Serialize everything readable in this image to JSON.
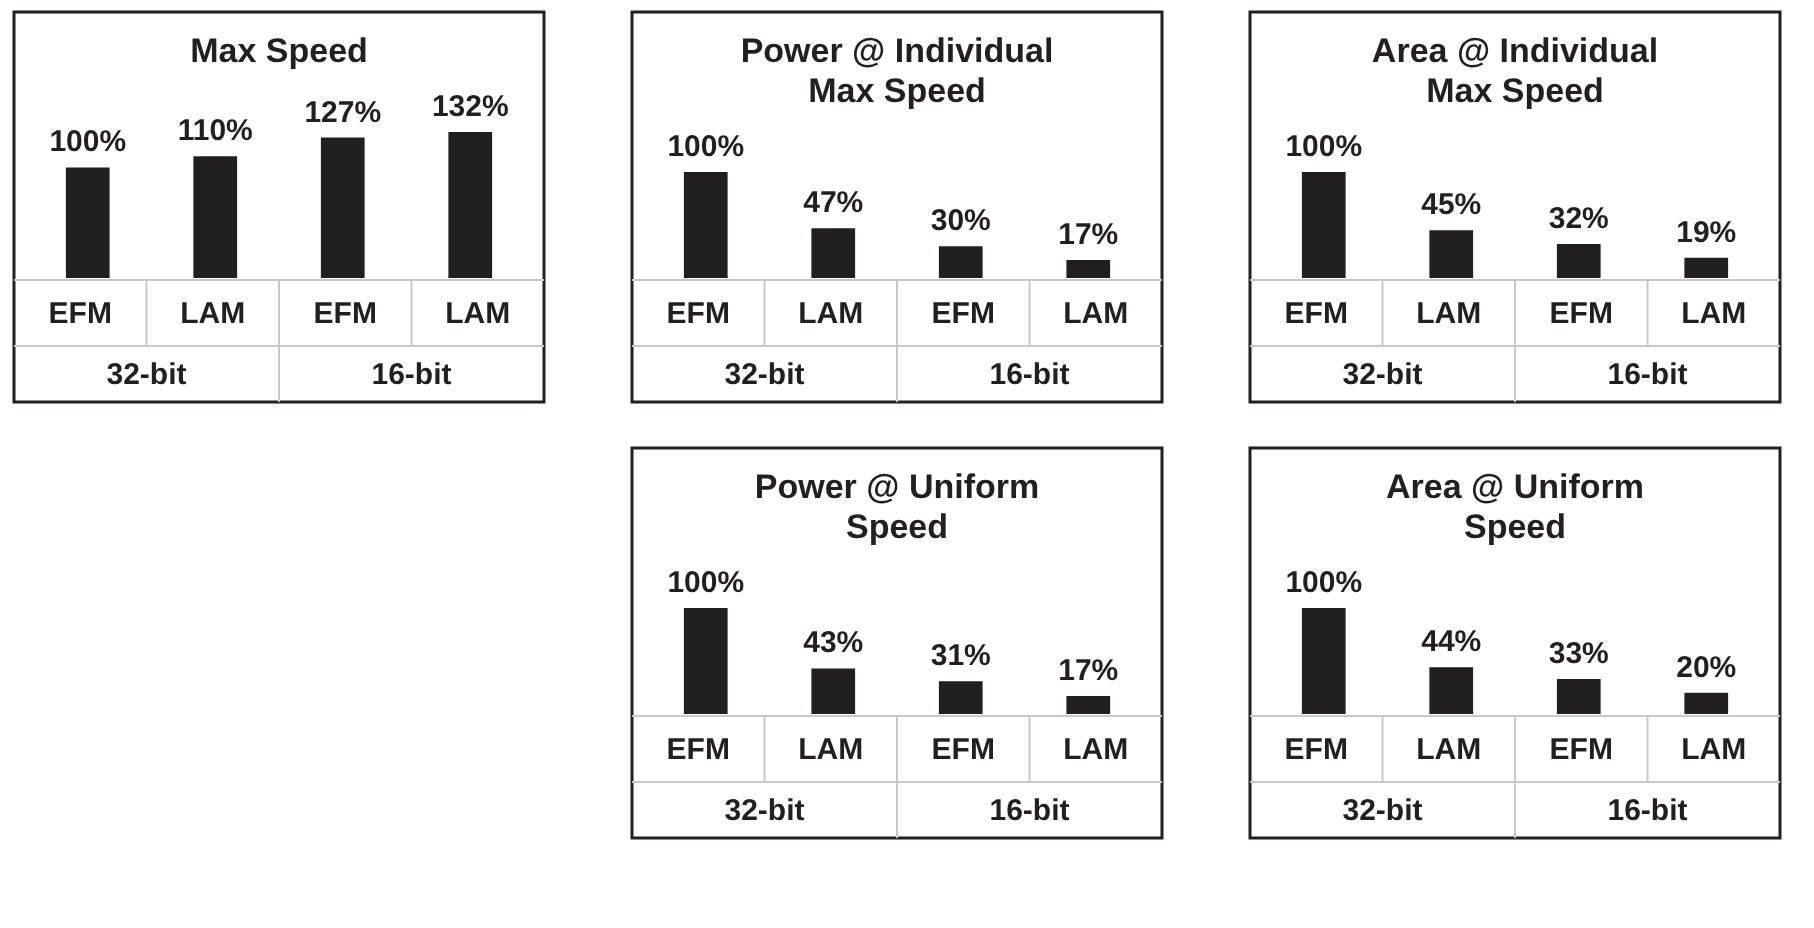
{
  "chart_data": [
    {
      "type": "bar",
      "title": "Max Speed",
      "categories": [
        "EFM",
        "LAM",
        "EFM",
        "LAM"
      ],
      "values": [
        100,
        110,
        127,
        132
      ],
      "value_labels": [
        "100%",
        "110%",
        "127%",
        "132%"
      ],
      "color": "#231f20",
      "annotations": [
        "32-bit",
        "16-bit"
      ]
    },
    {
      "type": "bar",
      "title": "Power @ Individual\nMax Speed",
      "categories": [
        "EFM",
        "LAM",
        "EFM",
        "LAM"
      ],
      "values": [
        100,
        47,
        30,
        17
      ],
      "value_labels": [
        "100%",
        "47%",
        "30%",
        "17%"
      ],
      "color": "#231f20",
      "annotations": [
        "32-bit",
        "16-bit"
      ]
    },
    {
      "type": "bar",
      "title": "Area @ Individual\nMax Speed",
      "categories": [
        "EFM",
        "LAM",
        "EFM",
        "LAM"
      ],
      "values": [
        100,
        45,
        32,
        19
      ],
      "value_labels": [
        "100%",
        "45%",
        "32%",
        "19%"
      ],
      "color": "#231f20",
      "annotations": [
        "32-bit",
        "16-bit"
      ]
    },
    {
      "type": "bar",
      "title": "Power @ Uniform\nSpeed",
      "categories": [
        "EFM",
        "LAM",
        "EFM",
        "LAM"
      ],
      "values": [
        100,
        43,
        31,
        17
      ],
      "value_labels": [
        "100%",
        "43%",
        "31%",
        "17%"
      ],
      "color": "#231f20",
      "annotations": [
        "32-bit",
        "16-bit"
      ]
    },
    {
      "type": "bar",
      "title": "Area @ Uniform\nSpeed",
      "categories": [
        "EFM",
        "LAM",
        "EFM",
        "LAM"
      ],
      "values": [
        100,
        44,
        33,
        20
      ],
      "value_labels": [
        "100%",
        "44%",
        "33%",
        "20%"
      ],
      "color": "#231f20",
      "annotations": [
        "32-bit",
        "16-bit"
      ]
    }
  ]
}
